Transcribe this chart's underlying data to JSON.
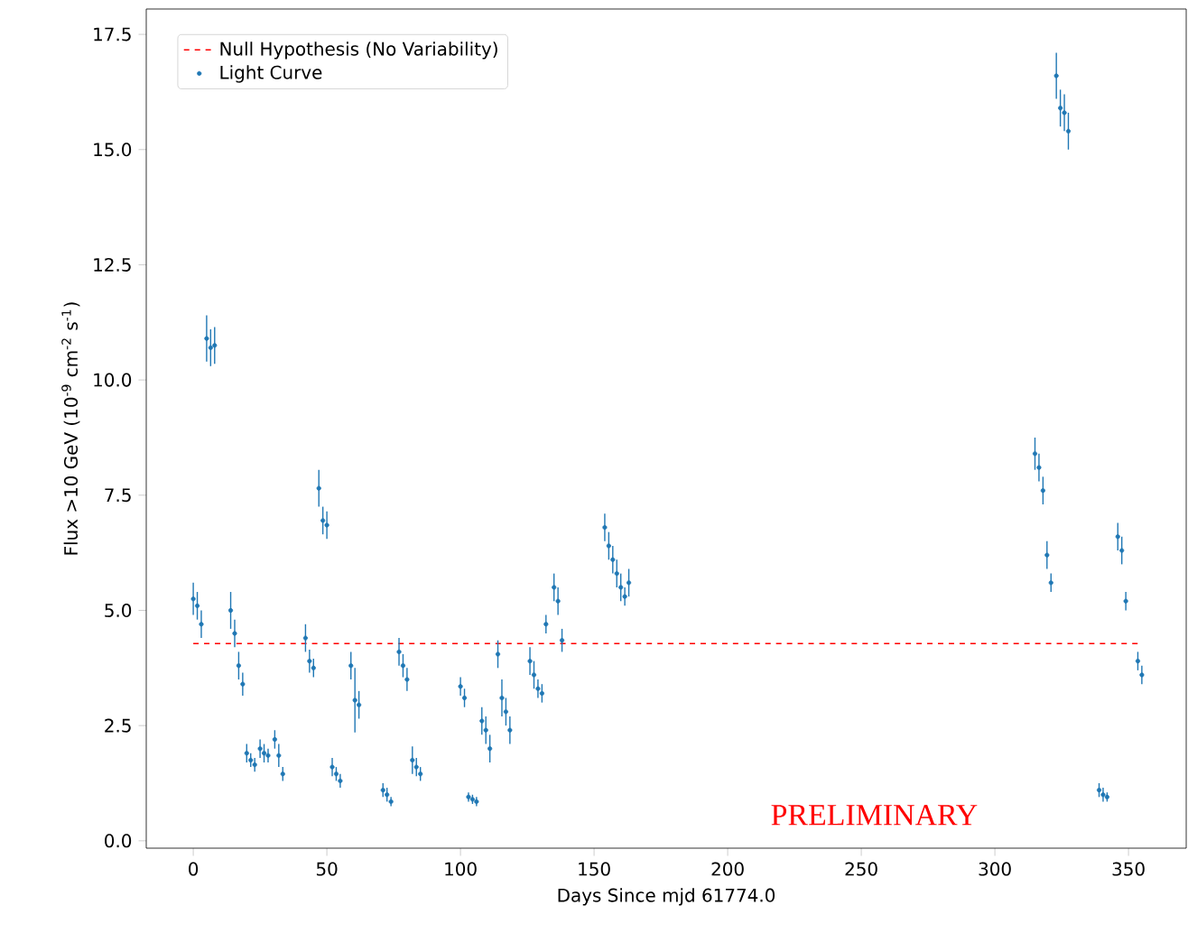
{
  "chart_data": {
    "type": "scatter",
    "xlabel": "Days Since mjd 61774.0",
    "ylabel": "Flux >10 GeV (10$^{-9}$ cm$^{-2}$ s$^{-1}$)",
    "xlim": [
      -17.6,
      371.6
    ],
    "ylim": [
      -0.16,
      18.05
    ],
    "xticks": [
      0,
      50,
      100,
      150,
      200,
      250,
      300,
      350
    ],
    "yticks": [
      {
        "value": 0,
        "label": "0.0"
      },
      {
        "value": 2.5,
        "label": "2.5"
      },
      {
        "value": 5,
        "label": "5.0"
      },
      {
        "value": 7.5,
        "label": "7.5"
      },
      {
        "value": 10,
        "label": "10.0"
      },
      {
        "value": 12.5,
        "label": "12.5"
      },
      {
        "value": 15,
        "label": "15.0"
      },
      {
        "value": 17.5,
        "label": "17.5"
      }
    ],
    "grid": false,
    "legend": "top left",
    "annotations": [
      "PRELIMINARY"
    ],
    "series": [
      {
        "name": "Null Hypothesis (No Variability)",
        "type": "line",
        "color": "#ff0000",
        "line_style": "dashed",
        "marker": "none",
        "x": [
          0,
          354
        ],
        "values": [
          4.28,
          4.28
        ]
      },
      {
        "name": "Light Curve",
        "color": "#1f77b4",
        "marker": "circle",
        "x": [
          0,
          1.5,
          3,
          5,
          6.5,
          8,
          14,
          15.5,
          17,
          18.5,
          20,
          21.5,
          23,
          25,
          26.5,
          28,
          30.5,
          32,
          33.5,
          42,
          43.5,
          45,
          47,
          48.5,
          50,
          52,
          53.5,
          55,
          59,
          60.5,
          62,
          71,
          72.5,
          74,
          77,
          78.5,
          80,
          82,
          83.5,
          85,
          100,
          101.5,
          103,
          104.5,
          106,
          108,
          109.5,
          111,
          114,
          115.5,
          117,
          118.5,
          126,
          127.5,
          129,
          130.5,
          132,
          135,
          136.5,
          138,
          154,
          155.5,
          157,
          158.5,
          160,
          161.5,
          163,
          315,
          316.5,
          318,
          319.5,
          321,
          323,
          324.5,
          326,
          327.5,
          339,
          340.5,
          342,
          346,
          347.5,
          349,
          353.5,
          355
        ],
        "values": [
          5.25,
          5.1,
          4.7,
          10.9,
          10.7,
          10.75,
          5.0,
          4.5,
          3.8,
          3.4,
          1.9,
          1.75,
          1.65,
          2.0,
          1.9,
          1.85,
          2.2,
          1.85,
          1.45,
          4.4,
          3.9,
          3.75,
          7.65,
          6.95,
          6.85,
          1.6,
          1.45,
          1.3,
          3.8,
          3.05,
          2.95,
          1.1,
          1.0,
          0.85,
          4.1,
          3.8,
          3.5,
          1.75,
          1.6,
          1.45,
          3.35,
          3.1,
          0.95,
          0.9,
          0.85,
          2.6,
          2.4,
          2.0,
          4.05,
          3.1,
          2.8,
          2.4,
          3.9,
          3.6,
          3.3,
          3.2,
          4.7,
          5.5,
          5.2,
          4.35,
          6.8,
          6.4,
          6.1,
          5.8,
          5.5,
          5.3,
          5.6,
          8.4,
          8.1,
          7.6,
          6.2,
          5.6,
          16.6,
          15.9,
          15.8,
          15.4,
          1.1,
          1.0,
          0.95,
          6.6,
          6.3,
          5.2,
          3.9,
          3.6
        ],
        "errors": [
          0.35,
          0.3,
          0.3,
          0.5,
          0.4,
          0.4,
          0.4,
          0.3,
          0.3,
          0.25,
          0.2,
          0.15,
          0.15,
          0.2,
          0.2,
          0.15,
          0.2,
          0.25,
          0.15,
          0.3,
          0.25,
          0.2,
          0.4,
          0.3,
          0.3,
          0.2,
          0.15,
          0.15,
          0.3,
          0.7,
          0.3,
          0.15,
          0.15,
          0.1,
          0.3,
          0.25,
          0.25,
          0.3,
          0.2,
          0.15,
          0.2,
          0.2,
          0.1,
          0.1,
          0.1,
          0.3,
          0.3,
          0.3,
          0.3,
          0.4,
          0.3,
          0.3,
          0.3,
          0.3,
          0.2,
          0.2,
          0.2,
          0.3,
          0.3,
          0.25,
          0.3,
          0.3,
          0.3,
          0.3,
          0.3,
          0.2,
          0.3,
          0.35,
          0.3,
          0.3,
          0.3,
          0.2,
          0.5,
          0.4,
          0.4,
          0.4,
          0.15,
          0.15,
          0.1,
          0.3,
          0.3,
          0.2,
          0.2,
          0.2
        ]
      }
    ]
  }
}
